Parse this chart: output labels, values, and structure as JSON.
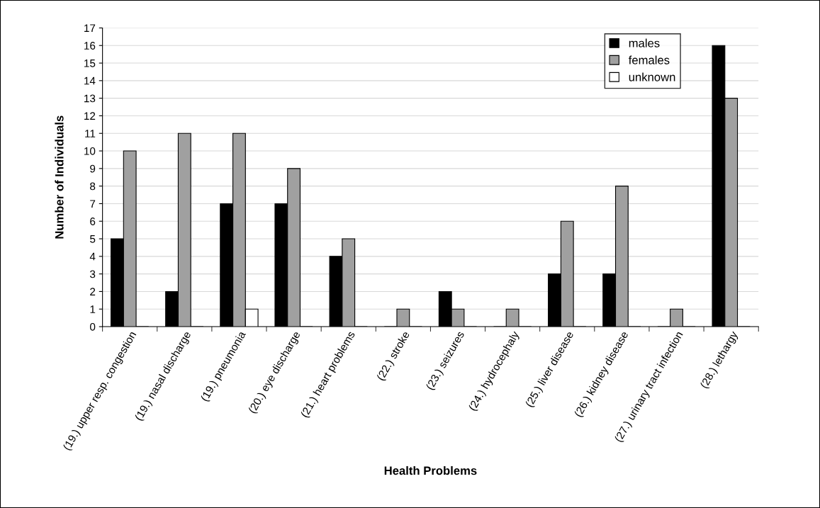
{
  "chart_data": {
    "type": "bar",
    "xlabel": "Health Problems",
    "ylabel": "Number of Individuals",
    "categories": [
      "(19.) upper resp. congestion",
      "(19.) nasal discharge",
      "(19.) pneumonia",
      "(20.) eye discharge",
      "(21.) heart problems",
      "(22.) stroke",
      "(23.) seizures",
      "(24.) hydrocephaly",
      "(25.) liver disease",
      "(26.) kidney disease",
      "(27.) urinary tract infection",
      "(28.) lethargy"
    ],
    "series": [
      {
        "name": "males",
        "color": "#000000",
        "values": [
          5,
          2,
          7,
          7,
          4,
          0,
          2,
          0,
          3,
          3,
          0,
          16
        ]
      },
      {
        "name": "females",
        "color": "#a0a0a0",
        "values": [
          10,
          11,
          11,
          9,
          5,
          1,
          1,
          1,
          6,
          8,
          1,
          13
        ]
      },
      {
        "name": "unknown",
        "color": "#ffffff",
        "values": [
          0,
          0,
          1,
          0,
          0,
          0,
          0,
          0,
          0,
          0,
          0,
          0
        ]
      }
    ],
    "ylim": [
      0,
      17
    ],
    "yticks": [
      0,
      1,
      2,
      3,
      4,
      5,
      6,
      7,
      8,
      9,
      10,
      11,
      12,
      13,
      14,
      15,
      16,
      17
    ],
    "grid": "y",
    "legend": "top right"
  }
}
